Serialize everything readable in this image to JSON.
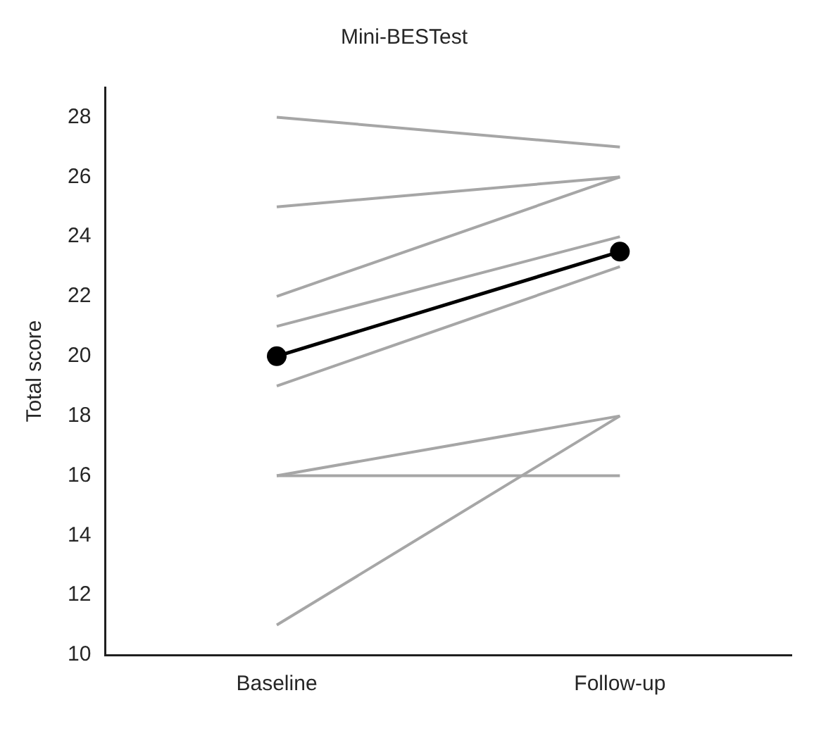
{
  "chart_data": {
    "type": "line",
    "title": "Mini-BESTest",
    "ylabel": "Total score",
    "categories": [
      "Baseline",
      "Follow-up"
    ],
    "series": [
      {
        "color": "#000000",
        "values": [
          20,
          23.5
        ]
      },
      {
        "color": "#a6a6a6",
        "values": [
          28,
          27
        ],
        "marker": "none"
      },
      {
        "color": "#a6a6a6",
        "values": [
          25,
          26
        ],
        "marker": "none"
      },
      {
        "color": "#a6a6a6",
        "values": [
          22,
          26
        ],
        "marker": "none"
      },
      {
        "color": "#a6a6a6",
        "values": [
          21,
          24
        ],
        "marker": "none"
      },
      {
        "color": "#a6a6a6",
        "values": [
          19,
          23
        ],
        "marker": "none"
      },
      {
        "color": "#a6a6a6",
        "values": [
          16,
          18
        ],
        "marker": "none"
      },
      {
        "color": "#a6a6a6",
        "values": [
          16,
          16
        ],
        "marker": "none"
      },
      {
        "color": "#a6a6a6",
        "values": [
          11,
          18
        ],
        "marker": "none"
      }
    ],
    "marker": "circle",
    "ylim": [
      10,
      29
    ],
    "yticks": [
      10,
      12,
      14,
      16,
      18,
      20,
      22,
      24,
      26,
      28
    ],
    "grid": false,
    "legend": false,
    "line_style": "solid"
  }
}
